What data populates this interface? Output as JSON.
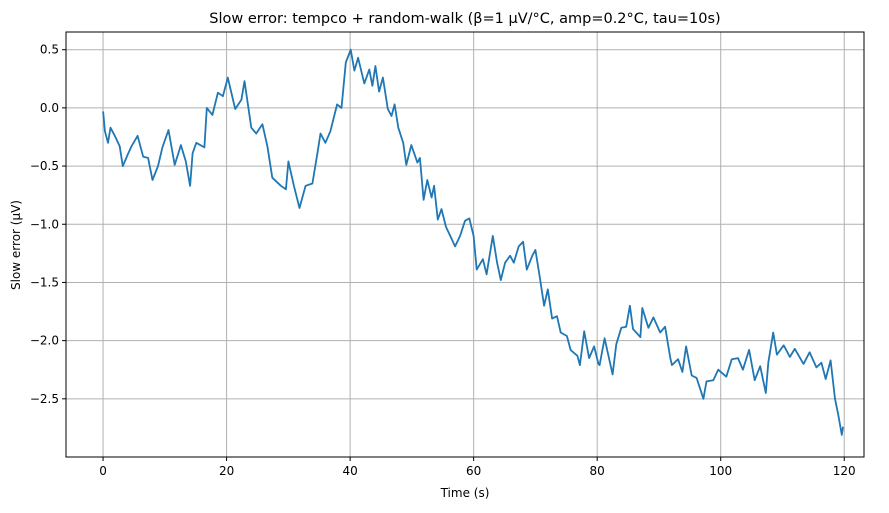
{
  "chart_data": {
    "type": "line",
    "title": "Slow error: tempco + random-walk (β=1 μV/°C, amp=0.2°C, tau=10s)",
    "xlabel": "Time (s)",
    "ylabel": "Slow error (μV)",
    "xlim": [
      -6,
      123.2
    ],
    "ylim": [
      -3.0,
      0.652
    ],
    "grid": true,
    "xticks": [
      0,
      20,
      40,
      60,
      80,
      100,
      120
    ],
    "xtick_labels": [
      "0",
      "20",
      "40",
      "60",
      "80",
      "100",
      "120"
    ],
    "yticks": [
      0.5,
      0.0,
      -0.5,
      -1.0,
      -1.5,
      -2.0,
      -2.5
    ],
    "ytick_labels": [
      "0.5",
      "0.0",
      "−0.5",
      "−1.0",
      "−1.5",
      "−2.0",
      "−2.5"
    ],
    "series": [
      {
        "name": "slow error",
        "color": "#1f77b4",
        "x": [
          0,
          0.3,
          0.8,
          1.2,
          1.9,
          2.7,
          3.2,
          4.0,
          4.6,
          5.6,
          6.5,
          7.3,
          8.0,
          8.9,
          9.6,
          10.6,
          11.6,
          12.6,
          13.4,
          14.1,
          14.5,
          15.1,
          16.4,
          16.8,
          17.7,
          18.6,
          19.4,
          20.2,
          21.4,
          22.4,
          22.9,
          24.0,
          24.8,
          25.8,
          26.6,
          27.4,
          28.8,
          29.6,
          30.0,
          30.9,
          31.8,
          32.8,
          33.9,
          34.7,
          35.2,
          36.0,
          36.8,
          37.9,
          38.6,
          39.3,
          40.1,
          40.7,
          41.3,
          42.3,
          43.1,
          43.6,
          44.1,
          44.7,
          45.3,
          46.1,
          46.7,
          47.2,
          47.8,
          48.6,
          49.1,
          49.9,
          50.9,
          51.3,
          51.9,
          52.5,
          53.2,
          53.6,
          54.2,
          54.8,
          55.5,
          56.2,
          57.0,
          57.8,
          58.6,
          59.3,
          60.0,
          60.5,
          61.5,
          62.1,
          63.1,
          63.8,
          64.4,
          65.1,
          65.9,
          66.5,
          67.3,
          68.0,
          68.6,
          69.5,
          70.0,
          70.7,
          71.4,
          72.0,
          72.7,
          73.5,
          74.1,
          75.1,
          75.7,
          76.8,
          77.2,
          77.9,
          78.7,
          79.5,
          80.2,
          80.4,
          81.2,
          82.5,
          83.1,
          83.9,
          84.7,
          85.3,
          85.8,
          87.0,
          87.3,
          88.3,
          89.1,
          90.2,
          91.0,
          91.8,
          92.1,
          93.1,
          93.8,
          94.4,
          95.3,
          96.1,
          97.2,
          97.7,
          98.8,
          99.6,
          100.9,
          101.8,
          102.8,
          103.6,
          104.6,
          105.5,
          106.4,
          107.3,
          107.7,
          108.5,
          109.1,
          110.2,
          111.2,
          112.0,
          113.4,
          114.4,
          115.5,
          116.3,
          117.0,
          117.8,
          118.5,
          119.0,
          119.6,
          119.8
        ],
        "y": [
          -0.03,
          -0.2,
          -0.3,
          -0.17,
          -0.24,
          -0.33,
          -0.5,
          -0.4,
          -0.33,
          -0.24,
          -0.42,
          -0.43,
          -0.62,
          -0.5,
          -0.34,
          -0.19,
          -0.49,
          -0.32,
          -0.46,
          -0.67,
          -0.39,
          -0.3,
          -0.34,
          0.0,
          -0.06,
          0.13,
          0.1,
          0.26,
          -0.01,
          0.07,
          0.23,
          -0.17,
          -0.22,
          -0.14,
          -0.33,
          -0.6,
          -0.67,
          -0.7,
          -0.46,
          -0.67,
          -0.86,
          -0.67,
          -0.65,
          -0.39,
          -0.22,
          -0.3,
          -0.2,
          0.03,
          0.0,
          0.39,
          0.5,
          0.32,
          0.43,
          0.21,
          0.33,
          0.19,
          0.36,
          0.14,
          0.26,
          -0.01,
          -0.07,
          0.03,
          -0.17,
          -0.3,
          -0.49,
          -0.32,
          -0.47,
          -0.43,
          -0.79,
          -0.62,
          -0.77,
          -0.67,
          -0.96,
          -0.87,
          -1.02,
          -1.1,
          -1.19,
          -1.1,
          -0.97,
          -0.95,
          -1.1,
          -1.39,
          -1.3,
          -1.43,
          -1.1,
          -1.33,
          -1.48,
          -1.33,
          -1.27,
          -1.33,
          -1.19,
          -1.15,
          -1.39,
          -1.27,
          -1.22,
          -1.45,
          -1.7,
          -1.56,
          -1.81,
          -1.79,
          -1.93,
          -1.96,
          -2.08,
          -2.13,
          -2.21,
          -1.92,
          -2.15,
          -2.05,
          -2.2,
          -2.21,
          -1.98,
          -2.29,
          -2.03,
          -1.89,
          -1.88,
          -1.7,
          -1.9,
          -1.97,
          -1.72,
          -1.89,
          -1.8,
          -1.93,
          -1.88,
          -2.14,
          -2.21,
          -2.16,
          -2.27,
          -2.05,
          -2.3,
          -2.32,
          -2.5,
          -2.35,
          -2.34,
          -2.25,
          -2.31,
          -2.16,
          -2.15,
          -2.25,
          -2.08,
          -2.34,
          -2.22,
          -2.45,
          -2.19,
          -1.93,
          -2.12,
          -2.04,
          -2.14,
          -2.07,
          -2.2,
          -2.1,
          -2.23,
          -2.19,
          -2.33,
          -2.17,
          -2.5,
          -2.63,
          -2.81,
          -2.74
        ]
      }
    ]
  }
}
